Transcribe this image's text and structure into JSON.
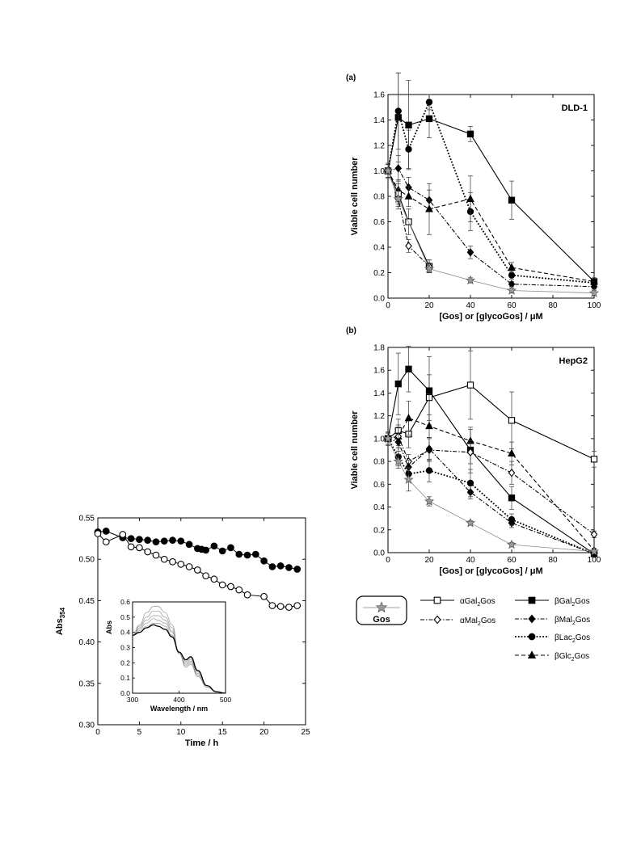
{
  "chart_data": [
    {
      "id": "panel_a",
      "type": "line",
      "panel_label": "(a)",
      "inner_label": "DLD-1",
      "xlabel": "[Gos] or [glycoGos] / μM",
      "ylabel": "Viable cell number",
      "xlim": [
        0,
        100
      ],
      "ylim": [
        0,
        1.6
      ],
      "xticks": [
        0,
        20,
        40,
        60,
        80,
        100
      ],
      "yticks": [
        0.0,
        0.2,
        0.4,
        0.6,
        0.8,
        1.0,
        1.2,
        1.4,
        1.6
      ],
      "series": [
        {
          "name": "βGal₂Gos",
          "marker": "square-filled",
          "dash": "solid",
          "x": [
            0,
            5,
            10,
            20,
            40,
            60,
            100
          ],
          "y": [
            1.0,
            1.42,
            1.36,
            1.41,
            1.29,
            0.77,
            0.13
          ],
          "err": [
            0.06,
            0.35,
            0.35,
            0.15,
            0.06,
            0.15,
            0.03
          ]
        },
        {
          "name": "βLac₂Gos",
          "marker": "circle-filled",
          "dash": "dotted",
          "x": [
            0,
            5,
            10,
            20,
            40,
            60,
            100
          ],
          "y": [
            1.0,
            1.47,
            1.17,
            1.54,
            0.68,
            0.18,
            0.12
          ],
          "err": [
            0.05,
            0.3,
            0.15,
            0.06,
            0.15,
            0.03,
            0.02
          ]
        },
        {
          "name": "βMal₂Gos",
          "marker": "diamond-filled",
          "dash": "dashdot",
          "x": [
            0,
            5,
            10,
            20,
            40,
            60,
            100
          ],
          "y": [
            1.0,
            1.02,
            0.87,
            0.77,
            0.36,
            0.11,
            0.09
          ],
          "err": [
            0.05,
            0.1,
            0.08,
            0.08,
            0.05,
            0.02,
            0.02
          ]
        },
        {
          "name": "βGlc₂Gos",
          "marker": "triangle-filled",
          "dash": "dashed",
          "x": [
            0,
            5,
            10,
            20,
            40,
            60,
            100
          ],
          "y": [
            1.0,
            0.85,
            0.8,
            0.7,
            0.78,
            0.24,
            0.13
          ],
          "err": [
            0.05,
            0.08,
            0.08,
            0.2,
            0.18,
            0.04,
            0.02
          ]
        },
        {
          "name": "αGal₂Gos",
          "marker": "square-open",
          "dash": "solid",
          "x": [
            0,
            5,
            10,
            20
          ],
          "y": [
            1.0,
            0.82,
            0.6,
            0.25
          ],
          "err": [
            0.05,
            0.08,
            0.1,
            0.05
          ]
        },
        {
          "name": "αMal₂Gos",
          "marker": "diamond-open",
          "dash": "dashdot",
          "x": [
            0,
            5,
            10,
            20
          ],
          "y": [
            1.0,
            0.78,
            0.41,
            0.25
          ],
          "err": [
            0.05,
            0.08,
            0.05,
            0.05
          ]
        },
        {
          "name": "Gos",
          "marker": "star",
          "dash": "solid-thin",
          "x": [
            0,
            5,
            20,
            40,
            60,
            100
          ],
          "y": [
            1.0,
            0.78,
            0.23,
            0.14,
            0.06,
            0.04
          ],
          "err": [
            0.05,
            0.06,
            0.03,
            0.02,
            0.02,
            0.02
          ]
        }
      ]
    },
    {
      "id": "panel_b",
      "type": "line",
      "panel_label": "(b)",
      "inner_label": "HepG2",
      "xlabel": "[Gos] or [glycoGos] / μM",
      "ylabel": "Viable cell number",
      "xlim": [
        0,
        100
      ],
      "ylim": [
        0,
        1.8
      ],
      "xticks": [
        0,
        20,
        40,
        60,
        80,
        100
      ],
      "yticks": [
        0.0,
        0.2,
        0.4,
        0.6,
        0.8,
        1.0,
        1.2,
        1.4,
        1.6,
        1.8
      ],
      "series": [
        {
          "name": "αGal₂Gos",
          "marker": "square-open",
          "dash": "solid",
          "x": [
            0,
            5,
            10,
            20,
            40,
            60,
            100
          ],
          "y": [
            1.0,
            1.07,
            1.04,
            1.36,
            1.47,
            1.16,
            0.82
          ],
          "err": [
            0.05,
            0.1,
            0.12,
            0.2,
            0.3,
            0.25,
            0.07
          ]
        },
        {
          "name": "βGal₂Gos",
          "marker": "square-filled",
          "dash": "solid",
          "x": [
            0,
            5,
            10,
            20,
            40,
            60,
            100
          ],
          "y": [
            1.0,
            1.48,
            1.61,
            1.42,
            0.9,
            0.48,
            -0.01
          ],
          "err": [
            0.06,
            0.27,
            0.2,
            0.3,
            0.2,
            0.1,
            0.02
          ]
        },
        {
          "name": "βGlc₂Gos",
          "marker": "triangle-filled",
          "dash": "dashed",
          "x": [
            0,
            5,
            10,
            20,
            40,
            60,
            100
          ],
          "y": [
            1.0,
            1.02,
            1.18,
            1.11,
            0.98,
            0.87,
            0.02
          ],
          "err": [
            0.05,
            0.1,
            0.15,
            0.1,
            0.1,
            0.1,
            0.02
          ]
        },
        {
          "name": "αMal₂Gos",
          "marker": "diamond-open",
          "dash": "dashdot",
          "x": [
            0,
            5,
            10,
            20,
            40,
            60,
            100
          ],
          "y": [
            1.0,
            1.02,
            0.8,
            0.9,
            0.88,
            0.7,
            0.16
          ],
          "err": [
            0.05,
            0.08,
            0.06,
            0.1,
            0.1,
            0.1,
            0.03
          ]
        },
        {
          "name": "βMal₂Gos",
          "marker": "diamond-filled",
          "dash": "dashdot",
          "x": [
            0,
            5,
            10,
            20,
            40,
            60,
            100
          ],
          "y": [
            1.0,
            0.97,
            0.75,
            0.91,
            0.53,
            0.26,
            -0.01
          ],
          "err": [
            0.05,
            0.08,
            0.06,
            0.1,
            0.06,
            0.04,
            0.02
          ]
        },
        {
          "name": "βLac₂Gos",
          "marker": "circle-filled",
          "dash": "dotted",
          "x": [
            0,
            5,
            10,
            20,
            40,
            60,
            100
          ],
          "y": [
            1.0,
            0.84,
            0.69,
            0.72,
            0.61,
            0.29,
            -0.01
          ],
          "err": [
            0.05,
            0.08,
            0.06,
            0.1,
            0.12,
            0.05,
            0.02
          ]
        },
        {
          "name": "Gos",
          "marker": "star",
          "dash": "solid-thin",
          "x": [
            0,
            5,
            10,
            20,
            40,
            60,
            100
          ],
          "y": [
            1.0,
            0.8,
            0.64,
            0.45,
            0.26,
            0.07,
            0.01
          ],
          "err": [
            0.05,
            0.06,
            0.1,
            0.04,
            0.02,
            0.02,
            0.02
          ]
        }
      ]
    },
    {
      "id": "panel_c",
      "type": "line",
      "xlabel": "Time / h",
      "ylabel": "Abs",
      "ylabel_sub": "354",
      "xlim": [
        0,
        25
      ],
      "ylim": [
        0.3,
        0.55
      ],
      "xticks": [
        0,
        5,
        10,
        15,
        20,
        25
      ],
      "yticks": [
        0.3,
        0.35,
        0.4,
        0.45,
        0.5,
        0.55
      ],
      "series": [
        {
          "marker": "circle-filled",
          "x": [
            0,
            1,
            3,
            4,
            5,
            6,
            7,
            8,
            9,
            10,
            11,
            12,
            12.5,
            13,
            14,
            15,
            16,
            17,
            18,
            19,
            20,
            21,
            22,
            23,
            24
          ],
          "y": [
            0.533,
            0.534,
            0.526,
            0.525,
            0.524,
            0.523,
            0.521,
            0.522,
            0.523,
            0.522,
            0.518,
            0.513,
            0.512,
            0.511,
            0.516,
            0.51,
            0.514,
            0.506,
            0.505,
            0.506,
            0.498,
            0.491,
            0.492,
            0.49,
            0.488
          ]
        },
        {
          "marker": "circle-open",
          "x": [
            0,
            1,
            3,
            4,
            5,
            6,
            7,
            8,
            9,
            10,
            11,
            12,
            13,
            14,
            15,
            16,
            17,
            18,
            20,
            21,
            22,
            23,
            24
          ],
          "y": [
            0.531,
            0.521,
            0.53,
            0.515,
            0.514,
            0.509,
            0.505,
            0.5,
            0.497,
            0.494,
            0.491,
            0.487,
            0.48,
            0.476,
            0.469,
            0.467,
            0.463,
            0.457,
            0.455,
            0.444,
            0.443,
            0.442,
            0.444
          ]
        }
      ],
      "inset": {
        "type": "line",
        "xlabel": "Wavelength / nm",
        "ylabel": "Abs",
        "xlim": [
          300,
          500
        ],
        "ylim": [
          0,
          0.6
        ],
        "xticks": [
          300,
          400,
          500
        ],
        "yticks": [
          0.0,
          0.1,
          0.2,
          0.3,
          0.4,
          0.5,
          0.6
        ],
        "wavelengths": [
          300,
          315,
          330,
          345,
          355,
          370,
          385,
          400,
          415,
          425,
          440,
          460,
          480,
          500
        ],
        "spectra": [
          [
            0.38,
            0.45,
            0.53,
            0.57,
            0.57,
            0.53,
            0.45,
            0.26,
            0.17,
            0.19,
            0.11,
            0.04,
            0.01,
            0.0
          ],
          [
            0.38,
            0.44,
            0.5,
            0.54,
            0.54,
            0.5,
            0.43,
            0.26,
            0.18,
            0.2,
            0.12,
            0.04,
            0.01,
            0.0
          ],
          [
            0.38,
            0.43,
            0.48,
            0.51,
            0.51,
            0.48,
            0.41,
            0.26,
            0.19,
            0.21,
            0.12,
            0.04,
            0.01,
            0.0
          ],
          [
            0.38,
            0.42,
            0.46,
            0.49,
            0.48,
            0.46,
            0.4,
            0.26,
            0.2,
            0.22,
            0.13,
            0.05,
            0.01,
            0.0
          ],
          [
            0.38,
            0.41,
            0.44,
            0.46,
            0.46,
            0.44,
            0.38,
            0.27,
            0.21,
            0.23,
            0.14,
            0.05,
            0.01,
            0.0
          ],
          [
            0.38,
            0.4,
            0.43,
            0.45,
            0.44,
            0.42,
            0.37,
            0.27,
            0.22,
            0.24,
            0.15,
            0.05,
            0.01,
            0.0
          ]
        ]
      }
    }
  ],
  "legend": {
    "gos_box_label": "Gos",
    "items": [
      {
        "label": "αGal",
        "sub": "2",
        "tail": "Gos",
        "marker": "square-open",
        "dash": "solid"
      },
      {
        "label": "αMal",
        "sub": "2",
        "tail": "Gos",
        "marker": "diamond-open",
        "dash": "dashdot"
      },
      {
        "label": "βGal",
        "sub": "2",
        "tail": "Gos",
        "marker": "square-filled",
        "dash": "solid"
      },
      {
        "label": "βMal",
        "sub": "2",
        "tail": "Gos",
        "marker": "diamond-filled",
        "dash": "dashdot"
      },
      {
        "label": "βLac",
        "sub": "2",
        "tail": "Gos",
        "marker": "circle-filled",
        "dash": "dotted"
      },
      {
        "label": "βGlc",
        "sub": "2",
        "tail": "Gos",
        "marker": "triangle-filled",
        "dash": "dashed"
      }
    ]
  }
}
